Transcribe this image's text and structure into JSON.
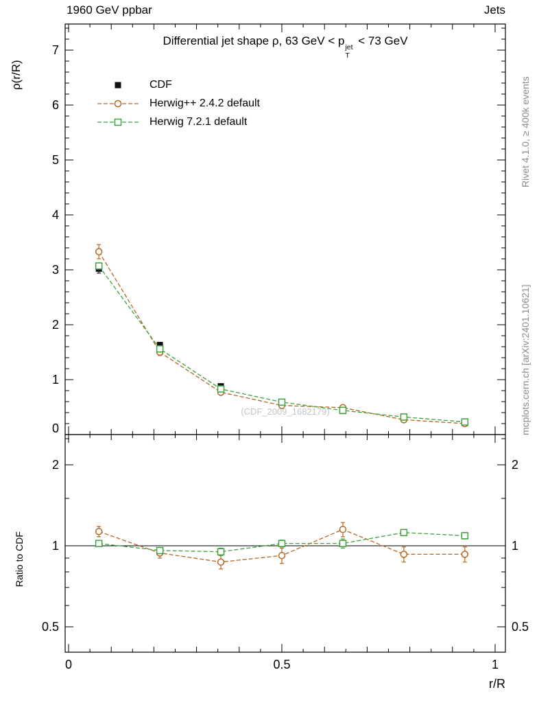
{
  "header": {
    "left": "1960 GeV ppbar",
    "right": "Jets"
  },
  "plot": {
    "title": {
      "prefix": "Differential jet shape ρ, 63 GeV < p",
      "sup": "jet",
      "sub": "T",
      "suffix": " < 73 GeV"
    },
    "watermark": "(CDF_2009_1682179)"
  },
  "side_notes": {
    "right_top": "Rivet 4.1.0, ≥ 400k events",
    "right_bottom": "mcplots.cern.ch [arXiv:2401.10621]"
  },
  "chart_data": {
    "type": "line",
    "x": [
      0.071,
      0.214,
      0.357,
      0.5,
      0.643,
      0.786,
      0.929
    ],
    "xlim": [
      -0.008,
      1.024
    ],
    "xtick_values": [
      0,
      0.5,
      1
    ],
    "xticks_labeled": [
      "0",
      "0.5",
      "1"
    ],
    "xlabel": "r/R",
    "main": {
      "ylabel": "ρ(r/R)",
      "ylim": [
        0,
        7.475
      ],
      "ytick_values": [
        0,
        1,
        2,
        3,
        4,
        5,
        6,
        7
      ],
      "grid": false,
      "legend_position": "top-left",
      "series": [
        {
          "name": "CDF",
          "marker": "square-filled",
          "color": "#111111",
          "line": false,
          "y": [
            3.02,
            1.63,
            0.88,
            0.58,
            0.43,
            0.29,
            0.21
          ],
          "yerr": [
            0.08,
            0.05,
            0.03,
            0.025,
            0.02,
            0.015,
            0.012
          ]
        },
        {
          "name": "Herwig++ 2.4.2 default",
          "marker": "circle-open",
          "color": "#b5651d",
          "line": true,
          "y": [
            3.33,
            1.5,
            0.77,
            0.53,
            0.49,
            0.27,
            0.2
          ],
          "yerr": [
            0.13,
            0.06,
            0.05,
            0.04,
            0.04,
            0.025,
            0.02
          ]
        },
        {
          "name": "Herwig 7.2.1 default",
          "marker": "square-open",
          "color": "#3fa03c",
          "line": true,
          "y": [
            3.07,
            1.56,
            0.83,
            0.59,
            0.44,
            0.32,
            0.23
          ],
          "yerr": [
            0.05,
            0.03,
            0.02,
            0.02,
            0.015,
            0.012,
            0.01
          ]
        }
      ]
    },
    "ratio": {
      "ylabel": "Ratio to CDF",
      "scale": "log",
      "ylim": [
        0.407,
        2.59
      ],
      "ytick_values": [
        0.5,
        1,
        2
      ],
      "ref_line": 1,
      "series": [
        {
          "name": "Herwig++ 2.4.2 default",
          "marker": "circle-open",
          "color": "#b5651d",
          "line": true,
          "y": [
            1.13,
            0.94,
            0.87,
            0.92,
            1.15,
            0.93,
            0.93
          ],
          "yerr": [
            0.05,
            0.04,
            0.05,
            0.06,
            0.07,
            0.06,
            0.06
          ]
        },
        {
          "name": "Herwig 7.2.1 default",
          "marker": "square-open",
          "color": "#3fa03c",
          "line": true,
          "y": [
            1.02,
            0.96,
            0.95,
            1.02,
            1.02,
            1.12,
            1.09
          ],
          "yerr": [
            0.02,
            0.02,
            0.03,
            0.03,
            0.04,
            0.03,
            0.03
          ]
        }
      ]
    }
  }
}
